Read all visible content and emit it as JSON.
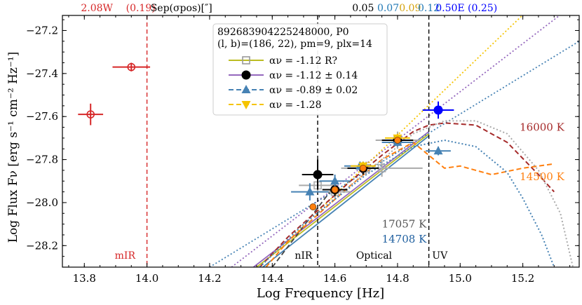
{
  "chart_data": {
    "type": "scatter",
    "xlabel": "Log Frequency [Hz]",
    "ylabel": "Log Flux Fν [erg s⁻¹ cm⁻² Hz⁻¹]",
    "xlim": [
      13.73,
      15.38
    ],
    "ylim": [
      -28.3,
      -27.13
    ],
    "x_ticks": [
      13.8,
      14.0,
      14.2,
      14.4,
      14.6,
      14.8,
      15.0,
      15.2
    ],
    "x_tick_labels": [
      "13.8",
      "14.0",
      "14.2",
      "14.4",
      "14.6",
      "14.8",
      "15.0",
      "15.2"
    ],
    "y_ticks": [
      -28.2,
      -28.0,
      -27.8,
      -27.6,
      -27.4,
      -27.2
    ],
    "y_tick_labels": [
      "−28.2",
      "−28.0",
      "−27.8",
      "−27.6",
      "−27.4",
      "−27.2"
    ],
    "top_annotations": [
      {
        "x": 13.84,
        "text": "2.08W",
        "color": "#d62728"
      },
      {
        "x": 13.98,
        "text": "(0.19)",
        "color": "#d62728"
      },
      {
        "x": 14.11,
        "text": "Sep(σpos)[″]",
        "color": "#000000"
      },
      {
        "x": 14.69,
        "text": "0.05",
        "color": "#000000"
      },
      {
        "x": 14.77,
        "text": "0.07",
        "color": "#1f77b4"
      },
      {
        "x": 14.84,
        "text": "0.09",
        "color": "#d4a20c"
      },
      {
        "x": 14.9,
        "text": "0.12",
        "color": "#1f77b4"
      },
      {
        "x": 15.02,
        "text": "0.50E (0.25)",
        "color": "#0000ff"
      }
    ],
    "vlines": [
      {
        "x": 14.0,
        "color": "#d62728",
        "style": "dashed",
        "label": "mIR",
        "label_x": 13.93
      },
      {
        "x": 14.545,
        "color": "#000000",
        "style": "dashed",
        "label": "nIR",
        "label_x": 14.5
      },
      {
        "x": 14.9,
        "color": "#000000",
        "style": "dashed",
        "label": "UV",
        "label_x": 14.935
      }
    ],
    "band_labels": [
      {
        "x": 14.725,
        "text": "Optical",
        "color": "#000000"
      }
    ],
    "temperature_labels": [
      {
        "x": 15.19,
        "y": -27.65,
        "text": "16000 K",
        "color": "#a52a2a"
      },
      {
        "x": 15.19,
        "y": -27.88,
        "text": "14500 K",
        "color": "#ff7f0e"
      },
      {
        "x": 14.75,
        "y": -28.1,
        "text": "17057 K",
        "color": "#555555"
      },
      {
        "x": 14.75,
        "y": -28.17,
        "text": "14708 K",
        "color": "#1f5f9f"
      }
    ],
    "legend": {
      "title_line1": "892683904225248000, P0",
      "title_line2": "(l, b)=(186, 22), pm=9, plx=14",
      "entries": [
        {
          "label": "αν = -1.12   R?",
          "color": "#bcbd22",
          "marker": "square-open",
          "marker_color": "#999999"
        },
        {
          "label": "αν = -1.12 ± 0.14",
          "color": "#9467bd",
          "marker": "circle",
          "marker_color": "#000000"
        },
        {
          "label": "αν = -0.89 ± 0.02",
          "color": "#4682b4",
          "marker": "triangle-up",
          "marker_color": "#4682b4",
          "dashed": true
        },
        {
          "label": "αν = -1.28",
          "color": "#f5c400",
          "marker": "triangle-down",
          "marker_color": "#f5c400",
          "dashed": true
        }
      ]
    },
    "series": [
      {
        "name": "mIR (red)",
        "color": "#d62728",
        "marker": "circle-open",
        "points": [
          {
            "x": 13.82,
            "y": -27.59,
            "xerr": 0.04,
            "yerr": 0.05
          },
          {
            "x": 13.95,
            "y": -27.37,
            "xerr": 0.06,
            "yerr": 0.02
          }
        ]
      },
      {
        "name": "grey open squares",
        "color": "#aaaaaa",
        "marker": "square-open",
        "points": [
          {
            "x": 14.545,
            "y": -27.92,
            "xerr": 0.06,
            "yerr": 0.03
          },
          {
            "x": 14.6,
            "y": -27.95,
            "xerr": 0.05,
            "yerr": 0.03
          },
          {
            "x": 14.7,
            "y": -27.84,
            "xerr": 0.07,
            "yerr": 0.03
          },
          {
            "x": 14.8,
            "y": -27.71,
            "xerr": 0.07,
            "yerr": 0.04
          },
          {
            "x": 14.75,
            "y": -27.84,
            "xerr": 0.13,
            "yerr": 0.04
          }
        ]
      },
      {
        "name": "black circles",
        "color": "#000000",
        "marker": "circle",
        "points": [
          {
            "x": 14.545,
            "y": -27.87,
            "xerr": 0.05,
            "yerr": 0.07
          },
          {
            "x": 14.6,
            "y": -27.94,
            "xerr": 0.04,
            "yerr": 0.03
          },
          {
            "x": 14.69,
            "y": -27.84,
            "xerr": 0.05,
            "yerr": 0.03
          },
          {
            "x": 14.8,
            "y": -27.71,
            "xerr": 0.05,
            "yerr": 0.02
          }
        ]
      },
      {
        "name": "steelblue triangles",
        "color": "#4682b4",
        "marker": "triangle-up",
        "points": [
          {
            "x": 14.52,
            "y": -27.95,
            "xerr": 0.06,
            "yerr": 0.04
          },
          {
            "x": 14.6,
            "y": -27.9,
            "xerr": 0.05,
            "yerr": 0.03
          },
          {
            "x": 14.68,
            "y": -27.83,
            "xerr": 0.05,
            "yerr": 0.02
          },
          {
            "x": 14.8,
            "y": -27.72,
            "xerr": 0.05,
            "yerr": 0.02
          },
          {
            "x": 14.93,
            "y": -27.76,
            "xerr": 0.04,
            "yerr": 0.02
          }
        ]
      },
      {
        "name": "gold triangles",
        "color": "#f5c400",
        "marker": "triangle-down",
        "points": [
          {
            "x": 14.8,
            "y": -27.7,
            "xerr": 0.04,
            "yerr": 0.02
          },
          {
            "x": 14.69,
            "y": -27.83,
            "xerr": 0.04,
            "yerr": 0.02
          }
        ]
      },
      {
        "name": "orange dots",
        "color": "#ff7f0e",
        "marker": "dot",
        "points": [
          {
            "x": 14.53,
            "y": -28.02
          },
          {
            "x": 14.6,
            "y": -27.94
          },
          {
            "x": 14.69,
            "y": -27.84
          },
          {
            "x": 14.8,
            "y": -27.71
          }
        ]
      },
      {
        "name": "UV (blue)",
        "color": "#0000ff",
        "marker": "circle",
        "points": [
          {
            "x": 14.93,
            "y": -27.57,
            "xerr": 0.05,
            "yerr": 0.04
          }
        ]
      }
    ],
    "fit_lines": [
      {
        "name": "yellow-green solid",
        "color": "#bcbd22",
        "style": "solid",
        "x": [
          14.35,
          14.9
        ],
        "y": [
          -28.3,
          -27.68
        ]
      },
      {
        "name": "purple solid",
        "color": "#9467bd",
        "style": "solid",
        "x": [
          14.34,
          14.9
        ],
        "y": [
          -28.3,
          -27.67
        ]
      },
      {
        "name": "steelblue solid",
        "color": "#4682b4",
        "style": "solid",
        "x": [
          14.37,
          14.9
        ],
        "y": [
          -28.3,
          -27.69
        ]
      },
      {
        "name": "purple dotted",
        "color": "#9467bd",
        "style": "dotted",
        "x": [
          14.27,
          15.38
        ],
        "y": [
          -28.3,
          -27.06
        ]
      },
      {
        "name": "steelblue dotted",
        "color": "#4682b4",
        "style": "dotted",
        "x": [
          14.2,
          15.38
        ],
        "y": [
          -28.3,
          -27.25
        ]
      },
      {
        "name": "gold dotted",
        "color": "#f5c400",
        "style": "dotted",
        "x": [
          14.36,
          15.22
        ],
        "y": [
          -28.3,
          -27.1
        ]
      },
      {
        "name": "dark dashed",
        "color": "#444444",
        "style": "dashed",
        "x": [
          14.4,
          14.6
        ],
        "y": [
          -28.3,
          -27.92
        ]
      }
    ],
    "model_curves": [
      {
        "name": "16000 K",
        "color": "#a52a2a",
        "style": "dashed",
        "x": [
          14.36,
          14.45,
          14.55,
          14.65,
          14.75,
          14.85,
          14.9,
          14.95,
          15.05,
          15.15,
          15.25,
          15.3
        ],
        "y": [
          -28.3,
          -28.16,
          -28.03,
          -27.9,
          -27.78,
          -27.67,
          -27.64,
          -27.63,
          -27.64,
          -27.72,
          -27.87,
          -27.95
        ]
      },
      {
        "name": "14500 K",
        "color": "#ff7f0e",
        "style": "dashed",
        "x": [
          14.38,
          14.45,
          14.55,
          14.65,
          14.75,
          14.85,
          14.9,
          14.95,
          15.0,
          15.1,
          15.2,
          15.3
        ],
        "y": [
          -28.3,
          -28.18,
          -28.05,
          -27.92,
          -27.8,
          -27.72,
          -27.78,
          -27.84,
          -27.83,
          -27.87,
          -27.84,
          -27.82
        ]
      },
      {
        "name": "17057 K",
        "color": "#aaaaaa",
        "style": "dotted",
        "x": [
          14.36,
          14.5,
          14.7,
          14.85,
          14.95,
          15.05,
          15.15,
          15.25,
          15.32,
          15.36
        ],
        "y": [
          -28.3,
          -28.1,
          -27.86,
          -27.68,
          -27.62,
          -27.62,
          -27.68,
          -27.85,
          -28.05,
          -28.3
        ]
      },
      {
        "name": "14708 K",
        "color": "#4682b4",
        "style": "dotted",
        "x": [
          14.36,
          14.5,
          14.7,
          14.85,
          14.95,
          15.05,
          15.15,
          15.2,
          15.26,
          15.3
        ],
        "y": [
          -28.3,
          -28.1,
          -27.87,
          -27.74,
          -27.71,
          -27.74,
          -27.86,
          -27.98,
          -28.15,
          -28.3
        ]
      }
    ]
  }
}
